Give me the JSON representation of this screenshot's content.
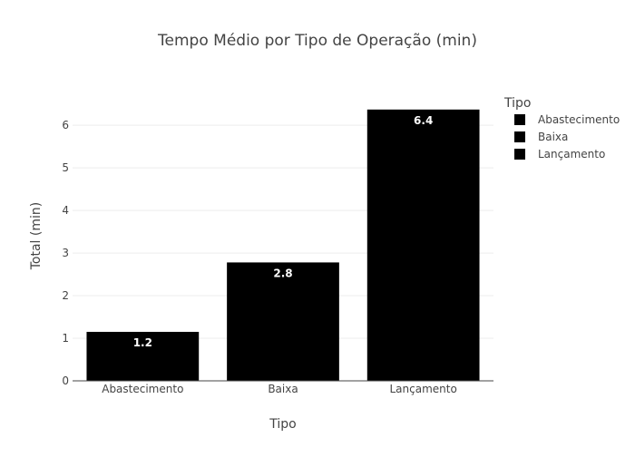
{
  "chart_data": {
    "type": "bar",
    "title": "Tempo Médio por Tipo de Operação (min)",
    "xlabel": "Tipo",
    "ylabel": "Total (min)",
    "categories": [
      "Abastecimento",
      "Baixa",
      "Lançamento"
    ],
    "values": [
      1.15,
      2.78,
      6.37
    ],
    "data_labels": [
      "1.2",
      "2.8",
      "6.4"
    ],
    "ylim": [
      0,
      6.6
    ],
    "yticks": [
      0,
      1,
      2,
      3,
      4,
      5,
      6
    ],
    "grid": true,
    "legend": {
      "title": "Tipo",
      "placement": "top-right",
      "entries": [
        "Abastecimento",
        "Baixa",
        "Lançamento"
      ]
    },
    "colors": {
      "bar": "#000000",
      "data_label": "#ffffff",
      "grid": "#eeeeee",
      "text": "#444444"
    }
  }
}
